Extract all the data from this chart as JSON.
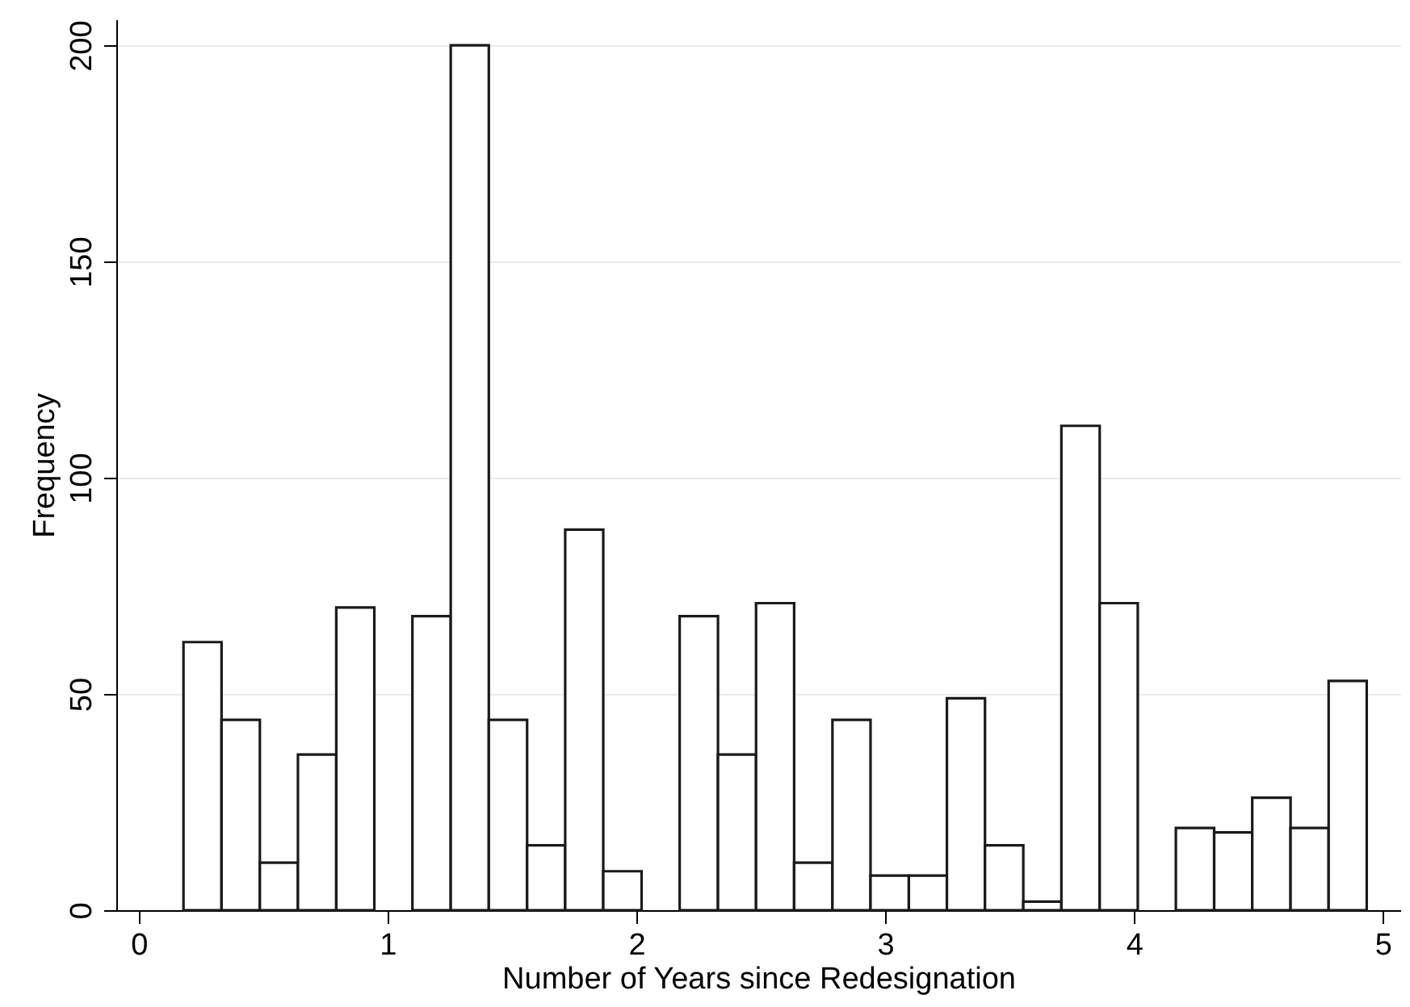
{
  "chart_data": {
    "type": "histogram",
    "xlabel": "Number of Years since Redesignation",
    "ylabel": "Frequency",
    "bins": [
      0.18,
      0.333,
      0.487,
      0.64,
      0.794,
      0.947,
      1.1,
      1.254,
      1.407,
      1.561,
      1.714,
      1.867,
      2.021,
      2.174,
      2.328,
      2.481,
      2.634,
      2.788,
      2.941,
      3.095,
      3.248,
      3.401,
      3.555,
      3.708,
      3.862,
      4.015,
      4.168,
      4.322,
      4.475,
      4.629,
      4.782,
      4.935
    ],
    "values": [
      62,
      44,
      11,
      36,
      70,
      0,
      68,
      200,
      44,
      15,
      88,
      9,
      0,
      68,
      36,
      71,
      11,
      44,
      8,
      8,
      49,
      15,
      2,
      112,
      71,
      0,
      19,
      18,
      26,
      19,
      53
    ],
    "color": "#ffffff",
    "xlim": [
      -0.09,
      5.07
    ],
    "xticks": [
      0,
      1,
      2,
      3,
      4,
      5
    ],
    "ylim": [
      0,
      206
    ],
    "yticks": [
      0,
      50,
      100,
      150,
      200
    ],
    "grid": "y"
  }
}
